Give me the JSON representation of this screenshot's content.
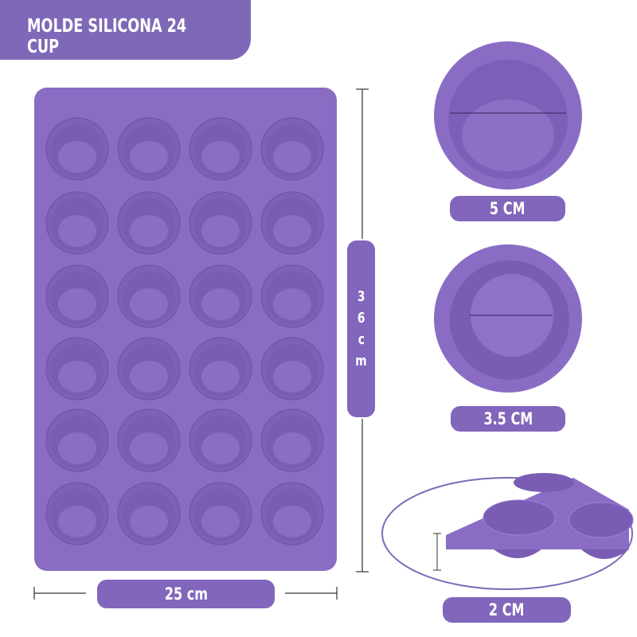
{
  "title": "MOLDE SILICONA 24 CUP",
  "dimensions": {
    "height": [
      "3",
      "6",
      "c",
      "m"
    ],
    "width": "25 cm",
    "cup_top_diameter": "5 CM",
    "cup_bottom_diameter": "3.5 CM",
    "cup_depth": "2 CM"
  },
  "tray": {
    "rows": 6,
    "cols": 4
  },
  "colors": {
    "brand": "#7f68b8",
    "silicone": "#8a6cc4",
    "silicone_dark": "#7a5cb4",
    "line": "#5a3f86"
  }
}
